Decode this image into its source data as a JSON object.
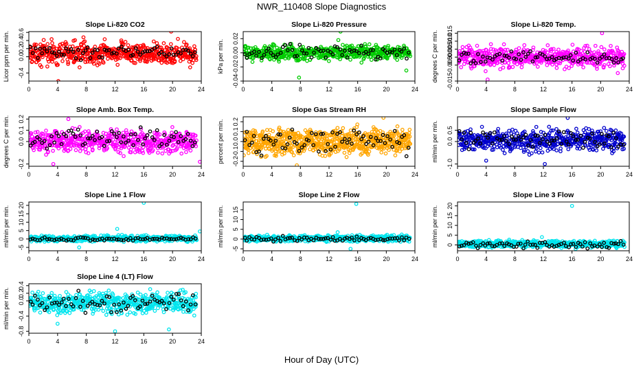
{
  "page": {
    "title": "NWR_110408  Slope Diagnostics",
    "xlabel": "Hour of Day (UTC)"
  },
  "chart_data": [
    {
      "id": "li820-co2",
      "type": "scatter",
      "title": "Slope Li-820 CO2",
      "xlabel": "",
      "ylabel": "Licor ppm per min.",
      "xlim": [
        0,
        24
      ],
      "xticks": [
        "0",
        "4",
        "8",
        "12",
        "16",
        "20",
        "24"
      ],
      "ylim": [
        -0.6,
        0.62
      ],
      "yticks": [
        "-0.4",
        "0.0",
        "0.2",
        "0.4",
        "0.6"
      ],
      "series": [
        {
          "color": "#ff0000",
          "n": 560,
          "center": 0.08,
          "spread": 0.16,
          "outliers": [
            [
              4.1,
              -0.6
            ],
            [
              19.8,
              0.62
            ],
            [
              7.6,
              0.48
            ]
          ]
        },
        {
          "color": "#000000",
          "n": 70,
          "center": 0.1,
          "spread": 0.1,
          "outliers": []
        }
      ]
    },
    {
      "id": "li820-pressure",
      "type": "scatter",
      "title": "Slope Li-820 Pressure",
      "xlabel": "",
      "ylabel": "kPa per min.",
      "xlim": [
        0,
        24
      ],
      "xticks": [
        "0",
        "4",
        "8",
        "12",
        "16",
        "20",
        "24"
      ],
      "ylim": [
        -0.04,
        0.03
      ],
      "yticks": [
        "-0.04",
        "-0.02",
        "0.00",
        "0.02"
      ],
      "series": [
        {
          "color": "#00cc00",
          "n": 560,
          "center": 0.0,
          "spread": 0.006,
          "outliers": [
            [
              13.6,
              0.03
            ],
            [
              7.8,
              -0.035
            ],
            [
              13.3,
              0.018
            ],
            [
              22.8,
              -0.025
            ]
          ]
        },
        {
          "color": "#000000",
          "n": 70,
          "center": 0.001,
          "spread": 0.006,
          "outliers": []
        }
      ]
    },
    {
      "id": "li820-temp",
      "type": "scatter",
      "title": "Slope Li-820 Temp.",
      "xlabel": "",
      "ylabel": "degrees C per min.",
      "xlim": [
        0,
        24
      ],
      "xticks": [
        "0",
        "4",
        "8",
        "12",
        "16",
        "20",
        "24"
      ],
      "ylim": [
        -0.015,
        0.016
      ],
      "yticks": [
        "-0.015",
        "-0.005",
        "0.000",
        "0.005",
        "0.010",
        "0.015"
      ],
      "series": [
        {
          "color": "#ff00ff",
          "n": 560,
          "center": 0.0,
          "spread": 0.004,
          "outliers": [
            [
              20.2,
              0.015
            ],
            [
              4.2,
              -0.014
            ],
            [
              22.4,
              -0.01
            ]
          ]
        },
        {
          "color": "#000000",
          "n": 70,
          "center": 0.0,
          "spread": 0.0025,
          "outliers": []
        }
      ]
    },
    {
      "id": "amb-box-temp",
      "type": "scatter",
      "title": "Slope Amb. Box Temp.",
      "xlabel": "",
      "ylabel": "degrees C per min.",
      "xlim": [
        0,
        24
      ],
      "xticks": [
        "0",
        "4",
        "8",
        "12",
        "16",
        "20",
        "24"
      ],
      "ylim": [
        -0.22,
        0.22
      ],
      "yticks": [
        "-0.2",
        "0.0",
        "0.1",
        "0.2"
      ],
      "series": [
        {
          "color": "#ff00ff",
          "n": 560,
          "center": 0.0,
          "spread": 0.06,
          "outliers": [
            [
              3.4,
              -0.2
            ],
            [
              5.5,
              0.2
            ],
            [
              23.8,
              -0.18
            ]
          ]
        },
        {
          "color": "#000000",
          "n": 70,
          "center": 0.02,
          "spread": 0.05,
          "outliers": []
        }
      ]
    },
    {
      "id": "gas-stream-rh",
      "type": "scatter",
      "title": "Slope Gas Stream RH",
      "xlabel": "",
      "ylabel": "percent per min.",
      "xlim": [
        0,
        24
      ],
      "xticks": [
        "0",
        "4",
        "8",
        "12",
        "16",
        "20",
        "24"
      ],
      "ylim": [
        -0.25,
        0.25
      ],
      "yticks": [
        "-0.2",
        "-0.1",
        "0.0",
        "0.1",
        "0.2"
      ],
      "series": [
        {
          "color": "#ffa500",
          "n": 700,
          "center": 0.0,
          "spread": 0.08,
          "outliers": [
            [
              19.6,
              0.24
            ],
            [
              7.5,
              -0.24
            ]
          ]
        },
        {
          "color": "#000000",
          "n": 70,
          "center": 0.0,
          "spread": 0.08,
          "outliers": []
        }
      ]
    },
    {
      "id": "sample-flow",
      "type": "scatter",
      "title": "Slope Sample Flow",
      "xlabel": "",
      "ylabel": "ml/min per min.",
      "xlim": [
        0,
        24
      ],
      "xticks": [
        "0",
        "4",
        "8",
        "12",
        "16",
        "20",
        "24"
      ],
      "ylim": [
        -1.1,
        1.1
      ],
      "yticks": [
        "-1.0",
        "0.0",
        "0.5"
      ],
      "series": [
        {
          "color": "#0000cc",
          "n": 560,
          "center": 0.05,
          "spread": 0.3,
          "outliers": [
            [
              12.2,
              -1.0
            ],
            [
              15.4,
              1.05
            ],
            [
              4.0,
              -0.85
            ]
          ]
        },
        {
          "color": "#000000",
          "n": 70,
          "center": 0.1,
          "spread": 0.25,
          "outliers": []
        }
      ]
    },
    {
      "id": "line1-flow",
      "type": "scatter",
      "title": "Slope Line 1 Flow",
      "xlabel": "",
      "ylabel": "ml/min per min.",
      "xlim": [
        0,
        24
      ],
      "xticks": [
        "0",
        "4",
        "8",
        "12",
        "16",
        "20",
        "24"
      ],
      "ylim": [
        -7,
        22
      ],
      "yticks": [
        "-5",
        "0",
        "5",
        "10",
        "15",
        "20"
      ],
      "series": [
        {
          "color": "#00e5ee",
          "n": 560,
          "center": 0.2,
          "spread": 1.0,
          "outliers": [
            [
              16.0,
              21.5
            ],
            [
              12.3,
              6.0
            ],
            [
              7.0,
              -5.0
            ],
            [
              23.8,
              4.5
            ]
          ]
        },
        {
          "color": "#000000",
          "n": 70,
          "center": 0.0,
          "spread": 0.6,
          "outliers": []
        }
      ]
    },
    {
      "id": "line2-flow",
      "type": "scatter",
      "title": "Slope Line 2 Flow",
      "xlabel": "",
      "ylabel": "ml/min per min.",
      "xlim": [
        0,
        24
      ],
      "xticks": [
        "0",
        "4",
        "8",
        "12",
        "16",
        "20",
        "24"
      ],
      "ylim": [
        -6,
        19
      ],
      "yticks": [
        "-5",
        "0",
        "5",
        "10",
        "15"
      ],
      "series": [
        {
          "color": "#00e5ee",
          "n": 560,
          "center": 0.3,
          "spread": 1.0,
          "outliers": [
            [
              15.8,
              18.0
            ],
            [
              13.2,
              3.5
            ],
            [
              15.0,
              -5.0
            ]
          ]
        },
        {
          "color": "#000000",
          "n": 70,
          "center": 0.0,
          "spread": 0.8,
          "outliers": []
        }
      ]
    },
    {
      "id": "line3-flow",
      "type": "scatter",
      "title": "Slope Line 3 Flow",
      "xlabel": "",
      "ylabel": "ml/min per min.",
      "xlim": [
        0,
        24
      ],
      "xticks": [
        "0",
        "4",
        "8",
        "12",
        "16",
        "20",
        "24"
      ],
      "ylim": [
        -3,
        22
      ],
      "yticks": [
        "0",
        "5",
        "10",
        "15",
        "20"
      ],
      "series": [
        {
          "color": "#00e5ee",
          "n": 560,
          "center": 0.5,
          "spread": 1.0,
          "outliers": [
            [
              16.0,
              20.0
            ],
            [
              11.8,
              4.0
            ],
            [
              16.5,
              -2.0
            ]
          ]
        },
        {
          "color": "#000000",
          "n": 70,
          "center": 0.2,
          "spread": 0.9,
          "outliers": []
        }
      ]
    },
    {
      "id": "line4-flow",
      "type": "scatter",
      "title": "Slope Line 4 (LT) Flow",
      "xlabel": "",
      "ylabel": "ml/min per min.",
      "xlim": [
        0,
        24
      ],
      "xticks": [
        "0",
        "4",
        "8",
        "12",
        "16",
        "20",
        "24"
      ],
      "ylim": [
        -0.85,
        0.45
      ],
      "yticks": [
        "-0.8",
        "-0.4",
        "0.0",
        "0.2",
        "0.4"
      ],
      "series": [
        {
          "color": "#00e5ee",
          "n": 560,
          "center": -0.05,
          "spread": 0.16,
          "outliers": [
            [
              12.0,
              -0.8
            ],
            [
              19.5,
              -0.75
            ],
            [
              4.0,
              -0.6
            ]
          ]
        },
        {
          "color": "#000000",
          "n": 70,
          "center": -0.05,
          "spread": 0.15,
          "outliers": []
        }
      ]
    }
  ]
}
